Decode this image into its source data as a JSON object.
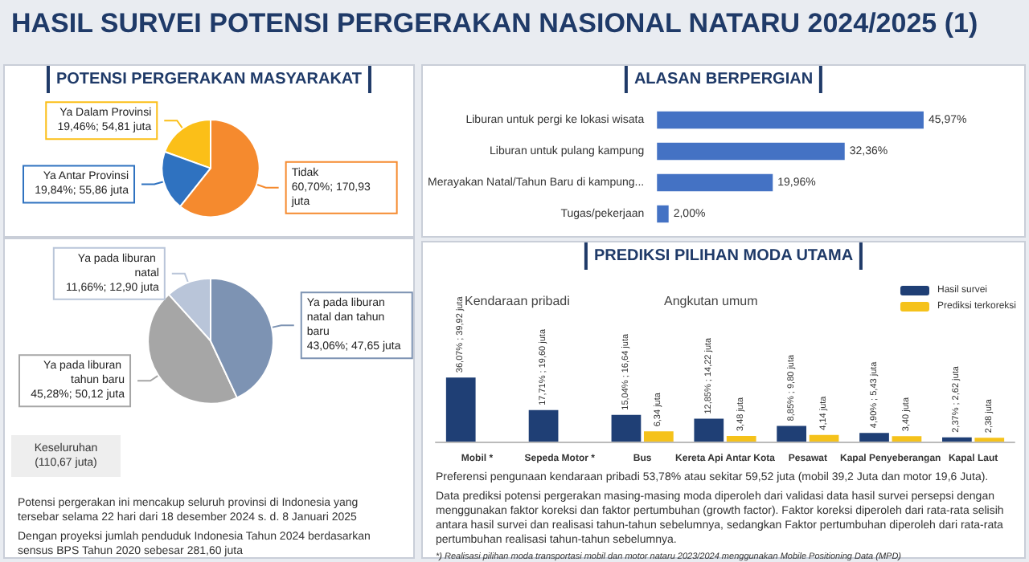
{
  "chart_data": [
    {
      "type": "pie",
      "title": "HASIL SURVEI POTENSI PERGERAKAN NASIONAL NATARU 2024/2025 (1)",
      "subtitle": "POTENSI PERGERAKAN MASYARAKAT",
      "categories": [
        "Ya Dalam Provinsi",
        "Ya Antar Provinsi",
        "Tidak"
      ],
      "values": [
        19.46,
        19.84,
        60.7
      ],
      "colors": [
        "#fbbf18",
        "#2f72c0",
        "#f58a2e"
      ],
      "value_labels": [
        "19,46%; 54,81 juta",
        "19,84%; 55,86 juta",
        "60,70%; 170,93 juta"
      ]
    },
    {
      "type": "pie",
      "categories": [
        "Ya pada liburan natal",
        "Ya pada liburan tahun baru",
        "Ya pada liburan natal dan tahun baru"
      ],
      "values": [
        11.66,
        45.28,
        43.06
      ],
      "colors": [
        "#b9c5d9",
        "#a6a6a6",
        "#7d93b3"
      ],
      "value_labels": [
        "11,66%; 12,90 juta",
        "45,28%; 50,12 juta",
        "43,06%; 47,65 juta"
      ],
      "annotations": [
        "Keseluruhan (110,67 juta)",
        "Potensi pergerakan ini mencakup seluruh provinsi di Indonesia yang tersebar selama 22 hari dari 18 desember 2024 s. d. 8 Januari 2025",
        "Dengan proyeksi jumlah penduduk Indonesia Tahun 2024 berdasarkan sensus BPS Tahun 2020 sebesar 281,60 juta"
      ]
    },
    {
      "type": "bar",
      "orientation": "horizontal",
      "title": "ALASAN BERPERGIAN",
      "categories": [
        "Liburan untuk pergi ke lokasi wisata",
        "Liburan untuk pulang kampung",
        "Merayakan Natal/Tahun Baru di kampung...",
        "Tugas/pekerjaan"
      ],
      "values": [
        45.97,
        32.36,
        19.96,
        2.0
      ],
      "color": "#4472c4",
      "value_labels": [
        "45,97%",
        "32,36%",
        "19,96%",
        "2,00%"
      ]
    },
    {
      "type": "bar",
      "title": "PREDIKSI PILIHAN MODA UTAMA",
      "legend": "top right",
      "categories": [
        "Mobil *",
        "Sepeda Motor *",
        "Bus",
        "Kereta Api Antar Kota",
        "Pesawat",
        "Kapal Penyeberangan",
        "Kapal Laut"
      ],
      "series": [
        {
          "name": "Hasil survei",
          "color": "#1f3f75",
          "values": [
            39.92,
            19.6,
            16.64,
            14.22,
            9.8,
            5.43,
            2.62
          ],
          "value_labels": [
            "36,07% ; 39,92 juta",
            "17,71% ; 19,60 juta",
            "15,04% ; 16,64 juta",
            "12,85% ; 14,22 juta",
            "8,85% ; 9,80 juta",
            "4,90% ; 5,43 juta",
            "2,37% ; 2,62 juta"
          ]
        },
        {
          "name": "Prediksi terkoreksi",
          "color": "#f5c21b",
          "values": [
            null,
            null,
            6.34,
            3.48,
            4.14,
            3.4,
            2.38
          ],
          "value_labels": [
            null,
            null,
            "6,34 juta",
            "3,48 juta",
            "4,14 juta",
            "3,40 juta",
            "2,38 juta"
          ]
        }
      ],
      "annotations": [
        "Kendaraan pribadi",
        "Angkutan umum",
        "Preferensi pengunaan kendaraan pribadi 53,78% atau sekitar 59,52 juta (mobil 39,2 Juta dan motor 19,6 Juta).",
        "Data prediksi potensi pergerakan masing-masing moda diperoleh dari validasi data hasil survei persepsi dengan menggunakan faktor koreksi dan faktor pertumbuhan (growth factor). Faktor koreksi diperoleh dari rata-rata selisih antara hasil survei dan realisasi tahun-tahun sebelumnya, sedangkan Faktor pertumbuhan diperoleh dari rata-rata pertumbuhan realisasi tahun-tahun sebelumnya.",
        "*) Realisasi pilihan moda transportasi mobil dan motor nataru 2023/2024 menggunakan Mobile Positioning Data (MPD)"
      ]
    }
  ]
}
